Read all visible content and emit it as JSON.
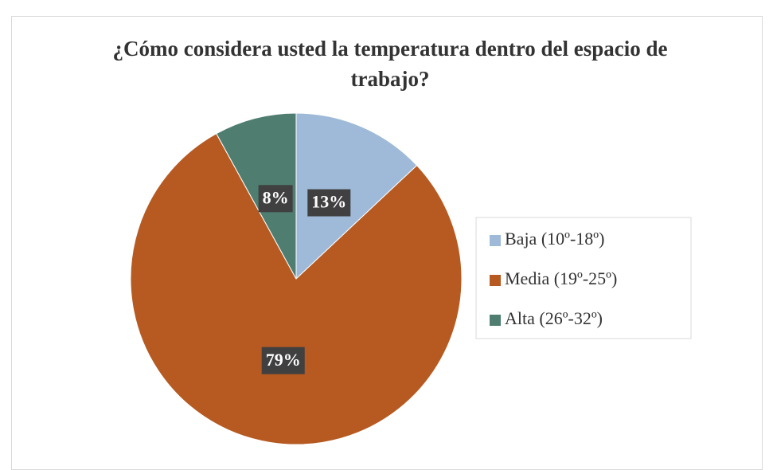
{
  "chart_data": {
    "type": "pie",
    "title": "¿Cómo considera usted la temperatura dentro del espacio de trabajo?",
    "categories": [
      "Baja (10º-18º)",
      "Media (19º-25º)",
      "Alta (26º-32º)"
    ],
    "values": [
      13,
      79,
      8
    ],
    "value_labels": [
      "13%",
      "79%",
      "8%"
    ],
    "colors": [
      "#9fbad8",
      "#b65a22",
      "#4f7e70"
    ],
    "legend": "right"
  }
}
